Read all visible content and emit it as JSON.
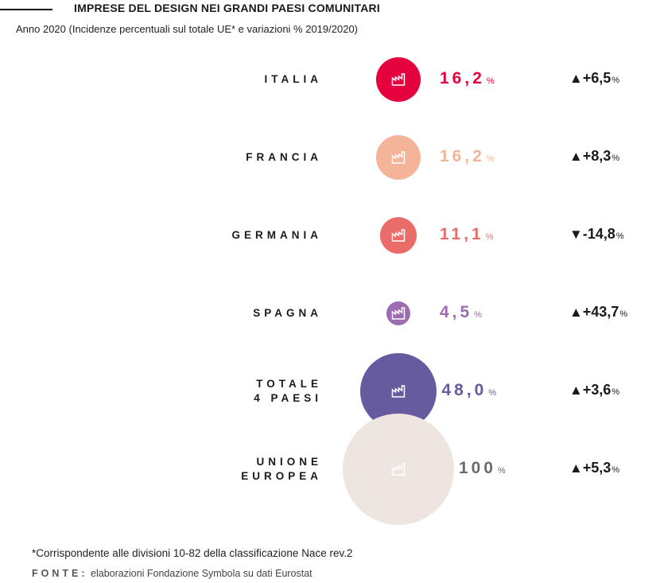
{
  "header": {
    "title": "IMPRESE DEL DESIGN NEI GRANDI PAESI COMUNITARI",
    "subtitle": "Anno 2020 (Incidenze percentuali sul totale UE* e variazioni % 2019/2020)"
  },
  "chart_data": {
    "type": "bubble",
    "title": "IMPRESE DEL DESIGN NEI GRANDI PAESI COMUNITARI",
    "subtitle": "Anno 2020 (Incidenze percentuali sul totale UE* e variazioni % 2019/2020)",
    "categories": [
      {
        "label_lines": [
          "ITALIA"
        ],
        "share_text": "16,2",
        "share": 16.2,
        "change_text": "+6,5",
        "change": 6.5,
        "direction": "up",
        "color": "#e5003e",
        "icon": "factory-icon"
      },
      {
        "label_lines": [
          "FRANCIA"
        ],
        "share_text": "16,2",
        "share": 16.2,
        "change_text": "+8,3",
        "change": 8.3,
        "direction": "up",
        "color": "#f4b49a",
        "icon": "factory-icon"
      },
      {
        "label_lines": [
          "GERMANIA"
        ],
        "share_text": "11,1",
        "share": 11.1,
        "change_text": "-14,8",
        "change": -14.8,
        "direction": "down",
        "color": "#ea6c69",
        "icon": "factory-icon"
      },
      {
        "label_lines": [
          "SPAGNA"
        ],
        "share_text": "4,5",
        "share": 4.5,
        "change_text": "+43,7",
        "change": 43.7,
        "direction": "up",
        "color": "#9d6bb0",
        "icon": "factory-icon"
      },
      {
        "label_lines": [
          "TOTALE",
          "4 PAESI"
        ],
        "share_text": "48,0",
        "share": 48.0,
        "change_text": "+3,6",
        "change": 3.6,
        "direction": "up",
        "color": "#665b9e",
        "icon": "factory-icon"
      },
      {
        "label_lines": [
          "UNIONE",
          "EUROPEA"
        ],
        "share_text": "100",
        "share": 100,
        "change_text": "+5,3",
        "change": 5.3,
        "direction": "up",
        "color": "#eee5e1",
        "icon": "factory-icon"
      }
    ],
    "value_colors": [
      "#e5003e",
      "#f4b49a",
      "#ea6c69",
      "#9d6bb0",
      "#665b9e",
      "#6b6b6b"
    ],
    "unit": "%"
  },
  "footnote": "*Corrispondente alle divisioni 10-82 della classificazione Nace rev.2",
  "source": {
    "label": "FONTE:",
    "text": "elaborazioni Fondazione Symbola su dati Eurostat"
  }
}
